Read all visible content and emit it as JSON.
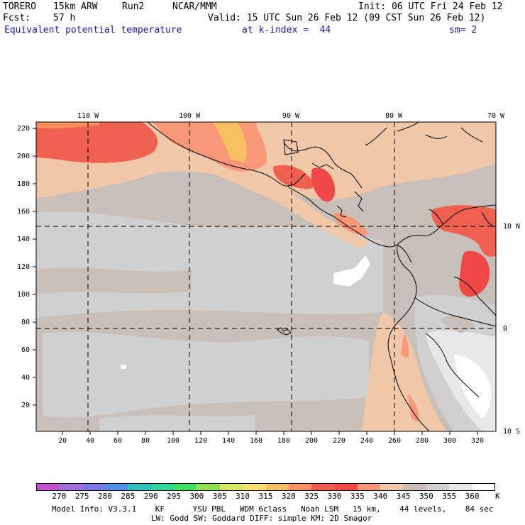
{
  "header": {
    "model": "TORERO",
    "resolution": "15km ARW",
    "run": "Run2",
    "center": "NCAR/MMM",
    "init": "Init: 06 UTC Fri 24 Feb 12",
    "fcst_label": "Fcst:",
    "fcst_value": "57 h",
    "valid": "Valid: 15 UTC Sun 26 Feb 12 (09 CST Sun 26 Feb 12)",
    "field": "Equivalent potential temperature",
    "level": "at k-index =  44",
    "smoothing": "sm= 2"
  },
  "map": {
    "lon_labels": [
      "110 W",
      "100 W",
      "90 W",
      "80 W",
      "70 W"
    ],
    "lat_labels": [
      "10 N",
      "0",
      "10 S"
    ],
    "y_axis_ticks": [
      "220",
      "200",
      "180",
      "160",
      "140",
      "120",
      "100",
      "80",
      "60",
      "40",
      "20"
    ],
    "x_axis_ticks": [
      "20",
      "40",
      "60",
      "80",
      "100",
      "120",
      "140",
      "160",
      "180",
      "200",
      "220",
      "240",
      "260",
      "280",
      "300",
      "320"
    ]
  },
  "colorbar": {
    "unit": "K",
    "labels": [
      "270",
      "275",
      "280",
      "285",
      "290",
      "295",
      "300",
      "305",
      "310",
      "315",
      "320",
      "325",
      "330",
      "335",
      "340",
      "345",
      "350",
      "355",
      "360"
    ],
    "colors": [
      "#c050d0",
      "#a070d8",
      "#7c78e8",
      "#5090e8",
      "#30c0c0",
      "#30d8a0",
      "#40e060",
      "#90e050",
      "#d8e860",
      "#f8e070",
      "#f8c060",
      "#f89060",
      "#f06050",
      "#f04848",
      "#f89878",
      "#f0c8a8",
      "#c8c0b8",
      "#d0d0d0",
      "#e8e8e8",
      "#ffffff"
    ]
  },
  "footer": {
    "line1": "Model Info: V3.3.1    KF      YSU PBL   WDM 6class   Noah LSM   15 km,    44 levels,    84 sec",
    "line2": "LW: Godd SW: Goddard DIFF: simple KM: 2D Smagor"
  }
}
